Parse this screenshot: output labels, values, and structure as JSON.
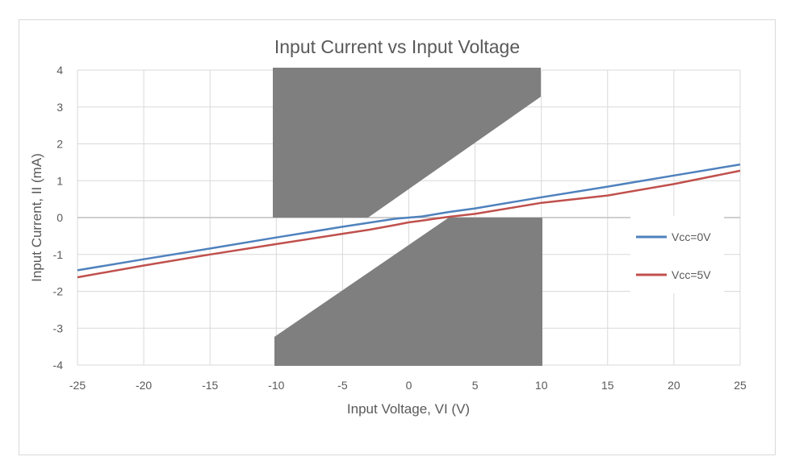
{
  "chart_data": {
    "type": "line",
    "title": "Input Current vs Input Voltage",
    "xlabel": "Input Voltage, VI (V)",
    "ylabel": "Input Current, II (mA)",
    "xlim": [
      -25,
      25
    ],
    "ylim": [
      -4,
      4
    ],
    "x_ticks": [
      -25,
      -20,
      -15,
      -10,
      -5,
      0,
      5,
      10,
      15,
      20,
      25
    ],
    "y_ticks": [
      4,
      3,
      2,
      1,
      0,
      -1,
      -2,
      -3,
      -4
    ],
    "grid": true,
    "legend_position": "right",
    "series": [
      {
        "name": "Vcc=0V",
        "color": "#4f81bd",
        "x": [
          -25,
          -20,
          -15,
          -10,
          -5,
          -3,
          -1,
          0,
          1,
          2,
          3,
          5,
          8,
          10,
          15,
          20,
          25
        ],
        "y": [
          -1.43,
          -1.13,
          -0.84,
          -0.54,
          -0.25,
          -0.14,
          -0.03,
          0.0,
          0.03,
          0.09,
          0.15,
          0.25,
          0.43,
          0.55,
          0.84,
          1.14,
          1.44
        ]
      },
      {
        "name": "Vcc=5V",
        "color": "#c0504d",
        "x": [
          -25,
          -20,
          -15,
          -10,
          -5,
          -3,
          -1,
          0,
          1,
          2,
          3,
          5,
          8,
          10,
          15,
          20,
          25
        ],
        "y": [
          -1.62,
          -1.3,
          -1.0,
          -0.72,
          -0.44,
          -0.33,
          -0.2,
          -0.13,
          -0.08,
          -0.03,
          0.02,
          0.1,
          0.28,
          0.4,
          0.6,
          0.91,
          1.27
        ]
      }
    ],
    "redaction_color": "#7f7f7f"
  }
}
